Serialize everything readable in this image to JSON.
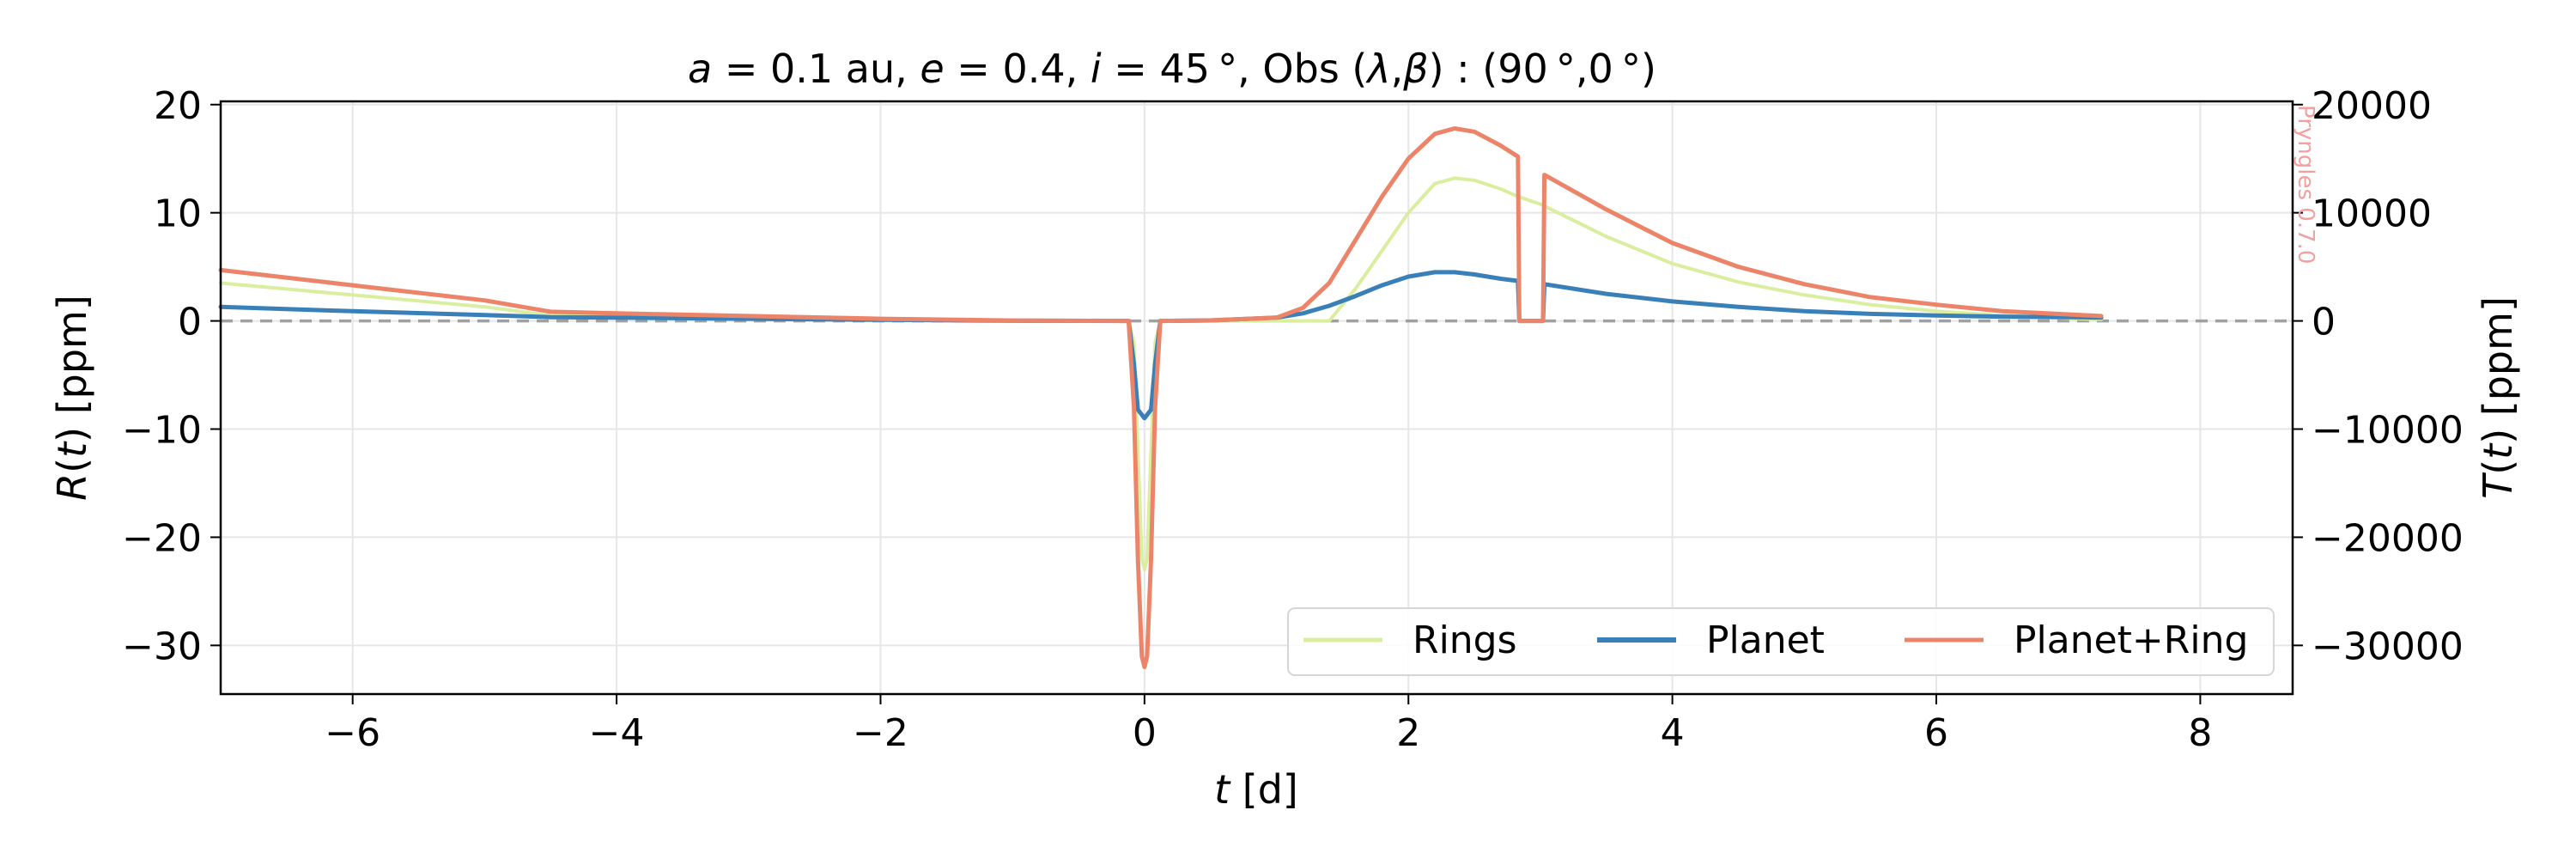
{
  "chart_data": {
    "type": "line",
    "title": {
      "a_var": "a",
      "a_rest": " = 0.1 au, ",
      "e_var": "e",
      "e_rest": " = 0.4, ",
      "i_var": "i",
      "i_rest": " = 45 °, Obs (",
      "lambda": "λ",
      "comma": ",",
      "beta": "β",
      "tail": ") : (90 °,0 °)"
    },
    "xlabel": {
      "var": "t",
      "unit": " [d]"
    },
    "ylabel": {
      "var": "R",
      "open": "(",
      "arg": "t",
      "unit": ") [ppm]"
    },
    "y2label": {
      "var": "T",
      "open": "(",
      "arg": "t",
      "unit": ") [ppm]"
    },
    "watermark": "Pryngles 0.7.0",
    "xlim": [
      -7,
      8.7
    ],
    "ylim": [
      -34.5,
      20.3
    ],
    "y2lim": [
      -34500,
      20300
    ],
    "xticks": [
      -6,
      -4,
      -2,
      0,
      2,
      4,
      6,
      8
    ],
    "xtick_labels": [
      "−6",
      "−4",
      "−2",
      "0",
      "2",
      "4",
      "6",
      "8"
    ],
    "yticks": [
      -30,
      -20,
      -10,
      0,
      10,
      20
    ],
    "ytick_labels": [
      "−30",
      "−20",
      "−10",
      "0",
      "10",
      "20"
    ],
    "y2ticks": [
      -30000,
      -20000,
      -10000,
      0,
      10000,
      20000
    ],
    "y2tick_labels": [
      "−30000",
      "−20000",
      "−10000",
      "0",
      "10000",
      "20000"
    ],
    "grid": true,
    "legend_position": "lower-right",
    "series": [
      {
        "name": "Rings",
        "color": "#d9ef9f",
        "width": 4,
        "points": [
          [
            -7,
            3.5
          ],
          [
            -6,
            2.4
          ],
          [
            -5,
            1.3
          ],
          [
            -4.5,
            0.5
          ],
          [
            -4,
            0.4
          ],
          [
            -3,
            0.25
          ],
          [
            -2,
            0.1
          ],
          [
            -1,
            0.02
          ],
          [
            -0.12,
            0
          ],
          [
            -0.08,
            -2
          ],
          [
            -0.05,
            -12
          ],
          [
            -0.02,
            -22
          ],
          [
            0,
            -23
          ],
          [
            0.02,
            -22
          ],
          [
            0.05,
            -12
          ],
          [
            0.08,
            -2
          ],
          [
            0.12,
            0
          ],
          [
            1,
            0
          ],
          [
            1.4,
            0
          ],
          [
            1.6,
            3
          ],
          [
            1.8,
            6.5
          ],
          [
            2,
            10
          ],
          [
            2.2,
            12.7
          ],
          [
            2.35,
            13.2
          ],
          [
            2.5,
            13
          ],
          [
            2.7,
            12.2
          ],
          [
            2.83,
            11.5
          ],
          [
            3,
            10.8
          ],
          [
            3.5,
            7.8
          ],
          [
            4,
            5.3
          ],
          [
            4.5,
            3.6
          ],
          [
            5,
            2.4
          ],
          [
            5.5,
            1.5
          ],
          [
            6,
            0.9
          ],
          [
            6.5,
            0.5
          ],
          [
            7,
            0.25
          ],
          [
            7.25,
            0.15
          ]
        ]
      },
      {
        "name": "Planet",
        "color": "#3a80b8",
        "width": 5,
        "points": [
          [
            -7,
            1.3
          ],
          [
            -6,
            0.9
          ],
          [
            -5,
            0.55
          ],
          [
            -4.5,
            0.35
          ],
          [
            -4,
            0.3
          ],
          [
            -3,
            0.2
          ],
          [
            -2,
            0.1
          ],
          [
            -1,
            0.02
          ],
          [
            -0.12,
            0
          ],
          [
            -0.08,
            -4
          ],
          [
            -0.05,
            -8.2
          ],
          [
            0,
            -9
          ],
          [
            0.05,
            -8.2
          ],
          [
            0.08,
            -4
          ],
          [
            0.12,
            0
          ],
          [
            0.5,
            0.05
          ],
          [
            1,
            0.3
          ],
          [
            1.2,
            0.7
          ],
          [
            1.4,
            1.4
          ],
          [
            1.6,
            2.3
          ],
          [
            1.8,
            3.3
          ],
          [
            2,
            4.1
          ],
          [
            2.2,
            4.5
          ],
          [
            2.35,
            4.5
          ],
          [
            2.5,
            4.3
          ],
          [
            2.7,
            3.9
          ],
          [
            2.83,
            3.7
          ],
          [
            2.84,
            0
          ],
          [
            3.02,
            0
          ],
          [
            3.03,
            3.4
          ],
          [
            3.5,
            2.5
          ],
          [
            4,
            1.8
          ],
          [
            4.5,
            1.3
          ],
          [
            5,
            0.9
          ],
          [
            5.5,
            0.65
          ],
          [
            6,
            0.5
          ],
          [
            6.5,
            0.4
          ],
          [
            7,
            0.35
          ],
          [
            7.25,
            0.3
          ]
        ]
      },
      {
        "name": "Planet+Ring",
        "color": "#ec8469",
        "width": 5,
        "points": [
          [
            -7,
            4.7
          ],
          [
            -6,
            3.3
          ],
          [
            -5,
            1.9
          ],
          [
            -4.5,
            0.85
          ],
          [
            -4,
            0.7
          ],
          [
            -3,
            0.45
          ],
          [
            -2,
            0.2
          ],
          [
            -1,
            0.04
          ],
          [
            -0.12,
            0
          ],
          [
            -0.08,
            -8
          ],
          [
            -0.05,
            -22
          ],
          [
            -0.02,
            -31
          ],
          [
            0,
            -32
          ],
          [
            0.02,
            -31
          ],
          [
            0.05,
            -22
          ],
          [
            0.08,
            -8
          ],
          [
            0.12,
            0
          ],
          [
            0.5,
            0.05
          ],
          [
            1,
            0.3
          ],
          [
            1.2,
            1.2
          ],
          [
            1.4,
            3.5
          ],
          [
            1.6,
            7.5
          ],
          [
            1.8,
            11.5
          ],
          [
            2,
            15
          ],
          [
            2.2,
            17.3
          ],
          [
            2.35,
            17.8
          ],
          [
            2.5,
            17.5
          ],
          [
            2.7,
            16.2
          ],
          [
            2.83,
            15.2
          ],
          [
            2.84,
            0
          ],
          [
            3.02,
            0
          ],
          [
            3.03,
            13.5
          ],
          [
            3.5,
            10.3
          ],
          [
            4,
            7.2
          ],
          [
            4.5,
            5
          ],
          [
            5,
            3.4
          ],
          [
            5.5,
            2.2
          ],
          [
            6,
            1.5
          ],
          [
            6.5,
            0.9
          ],
          [
            7,
            0.6
          ],
          [
            7.25,
            0.45
          ]
        ]
      }
    ]
  }
}
